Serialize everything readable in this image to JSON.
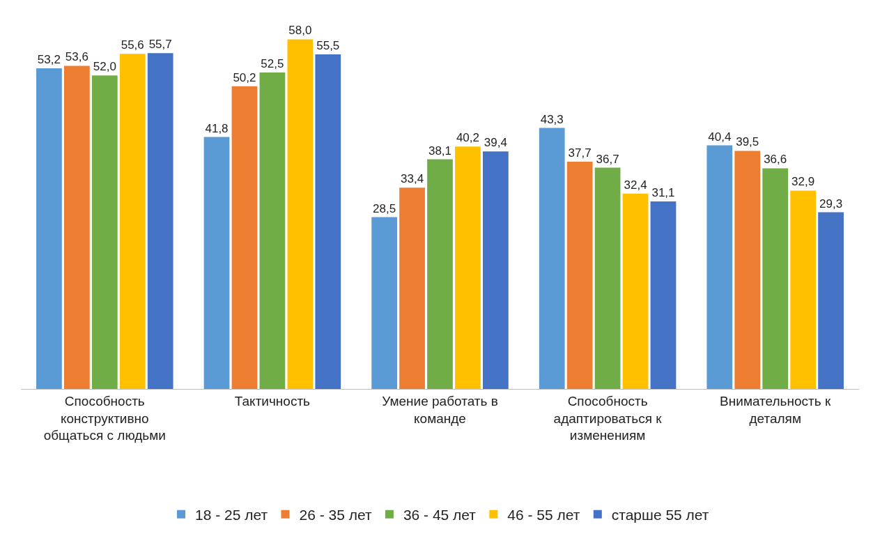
{
  "chart_data": {
    "type": "bar",
    "categories": [
      "Способность конструктивно общаться с людьми",
      "Тактичность",
      "Умение работать в команде",
      "Способность адаптироваться к изменениям",
      "Внимательность к деталям"
    ],
    "series": [
      {
        "name": "18 - 25 лет",
        "color": "#5b9bd5",
        "values": [
          53.2,
          41.8,
          28.5,
          43.3,
          40.4
        ],
        "value_labels": [
          "53,2",
          "41,8",
          "28,5",
          "43,3",
          "40,4"
        ]
      },
      {
        "name": "26 - 35 лет",
        "color": "#ed7d31",
        "values": [
          53.6,
          50.2,
          33.4,
          37.7,
          39.5
        ],
        "value_labels": [
          "53,6",
          "50,2",
          "33,4",
          "37,7",
          "39,5"
        ]
      },
      {
        "name": "36 - 45 лет",
        "color": "#70ad47",
        "values": [
          52.0,
          52.5,
          38.1,
          36.7,
          36.6
        ],
        "value_labels": [
          "52,0",
          "52,5",
          "38,1",
          "36,7",
          "36,6"
        ]
      },
      {
        "name": "46 - 55 лет",
        "color": "#ffc000",
        "values": [
          55.6,
          58.0,
          40.2,
          32.4,
          32.9
        ],
        "value_labels": [
          "55,6",
          "58,0",
          "40,2",
          "32,4",
          "32,9"
        ]
      },
      {
        "name": "старше 55 лет",
        "color": "#4472c4",
        "values": [
          55.7,
          55.5,
          39.4,
          31.1,
          29.3
        ],
        "value_labels": [
          "55,7",
          "55,5",
          "39,4",
          "31,1",
          "29,3"
        ]
      }
    ],
    "grid": false,
    "legend": "bottom",
    "tick_labels": "x"
  }
}
